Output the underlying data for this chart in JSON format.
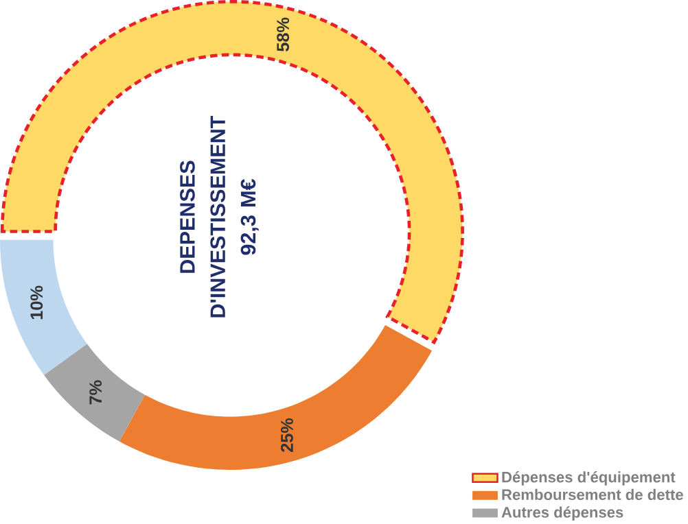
{
  "chart_data": {
    "type": "donut",
    "title": "DEPENSES D'INVESTISSEMENT",
    "subtitle": "92,3 M€",
    "categories": [
      "Dépenses d'équipement",
      "Remboursement de dette",
      "Autres dépenses",
      null
    ],
    "values": [
      58,
      25,
      7,
      10
    ],
    "colors": [
      "#ffd966",
      "#ed7d31",
      "#a5a5a5",
      "#bdd7ee"
    ],
    "value_labels": [
      "58%",
      "25%",
      "7%",
      "10%"
    ],
    "legend": "right"
  }
}
